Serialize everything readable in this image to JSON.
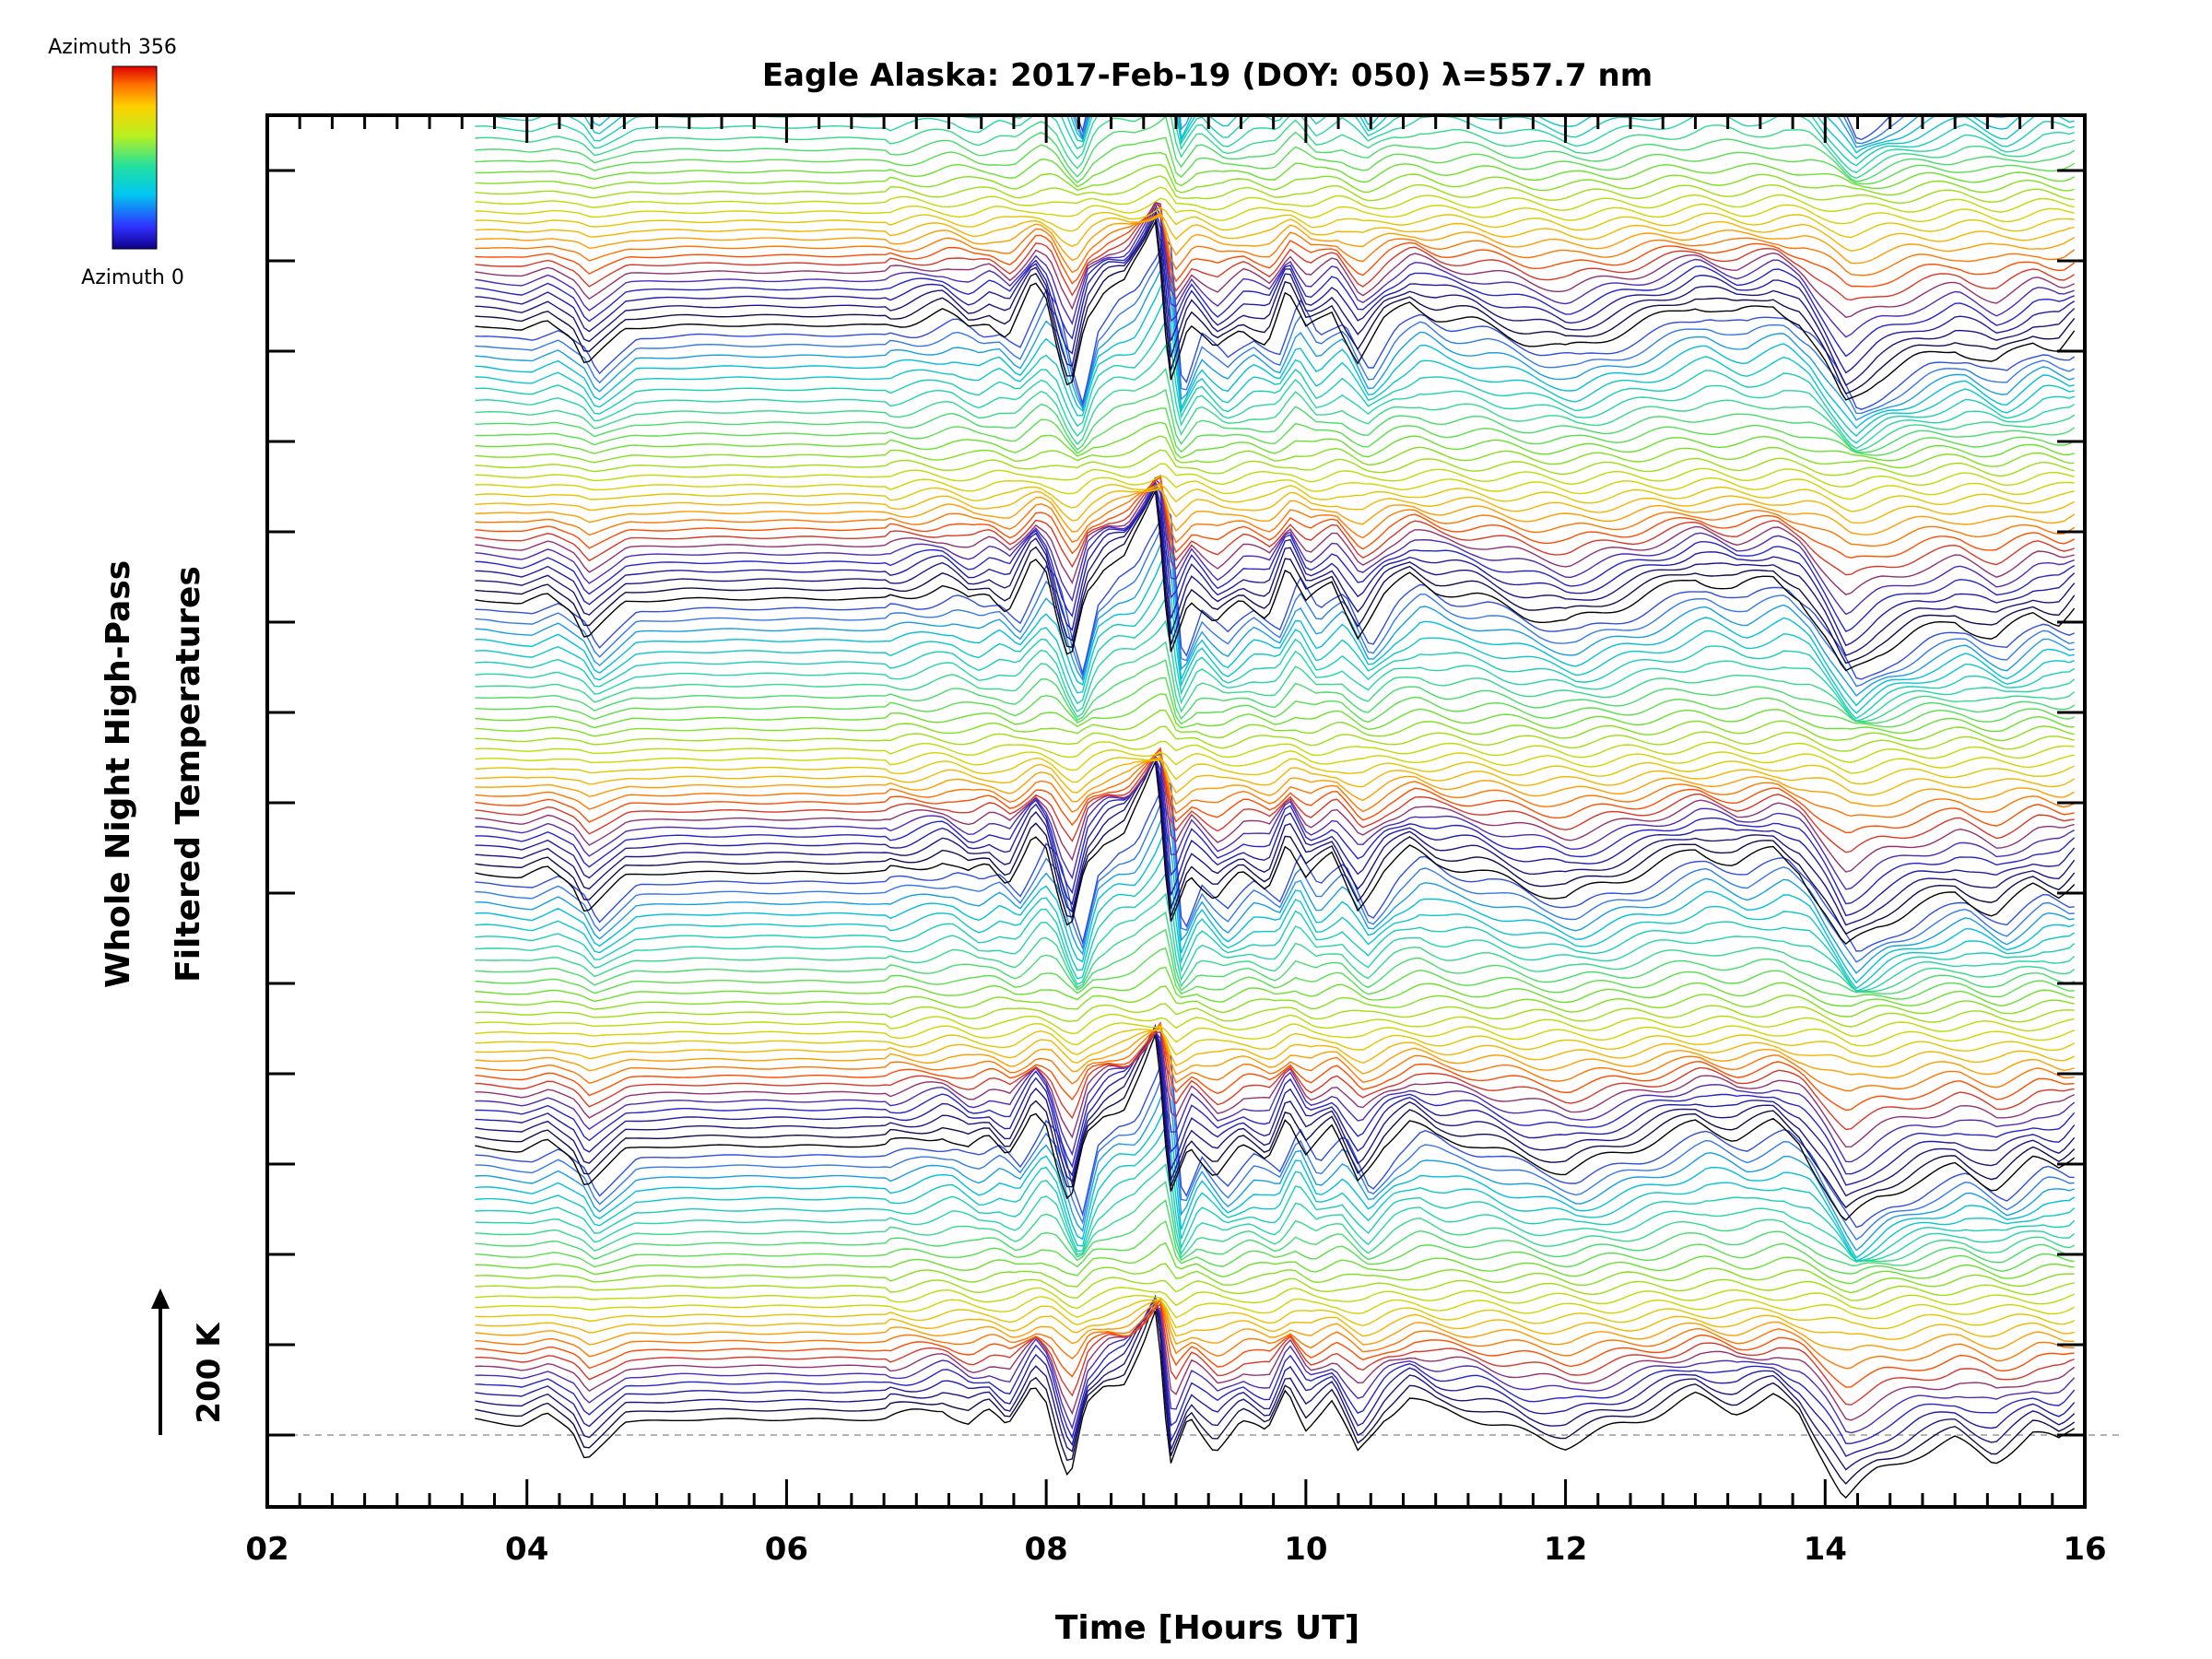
{
  "chart_data": {
    "type": "line",
    "title": "Eagle Alaska: 2017-Feb-19 (DOY: 050) λ=557.7 nm",
    "xlabel": "Time [Hours UT]",
    "ylabel": [
      "Whole Night High-Pass",
      "Filtered Temperatures"
    ],
    "xlim": [
      2,
      16
    ],
    "x_tick_labels": [
      "02",
      "04",
      "06",
      "08",
      "10",
      "12",
      "14",
      "16"
    ],
    "colorbar": {
      "top_label": "Azimuth 356",
      "bottom_label": "Azimuth 0",
      "colormap": "rainbow"
    },
    "scale_bar": {
      "label": "200 K",
      "value": 200
    },
    "grid": false,
    "series_count": 140,
    "data_start_hour": 3.6,
    "data_end_hour": 15.95,
    "profile": {
      "x": [
        3.6,
        3.95,
        4.15,
        4.35,
        4.45,
        4.6,
        4.75,
        5.2,
        6.0,
        6.7,
        6.9,
        7.2,
        7.4,
        7.55,
        7.7,
        7.9,
        8.0,
        8.1,
        8.18,
        8.3,
        8.45,
        8.6,
        8.75,
        8.85,
        8.95,
        9.1,
        9.3,
        9.5,
        9.7,
        9.85,
        10.0,
        10.2,
        10.4,
        10.6,
        10.8,
        11.0,
        11.3,
        11.7,
        12.0,
        12.5,
        13.0,
        13.3,
        13.6,
        13.8,
        14.0,
        14.15,
        14.4,
        14.7,
        15.0,
        15.3,
        15.6,
        15.8,
        15.95
      ],
      "y": [
        25,
        15,
        35,
        5,
        -40,
        -10,
        20,
        25,
        25,
        25,
        30,
        45,
        20,
        35,
        10,
        90,
        60,
        -30,
        -80,
        40,
        80,
        90,
        150,
        200,
        -60,
        30,
        -20,
        20,
        0,
        80,
        15,
        50,
        -30,
        30,
        60,
        40,
        30,
        0,
        -15,
        20,
        60,
        40,
        60,
        30,
        -40,
        -100,
        -60,
        -30,
        -10,
        -40,
        0,
        -10,
        20
      ]
    }
  }
}
